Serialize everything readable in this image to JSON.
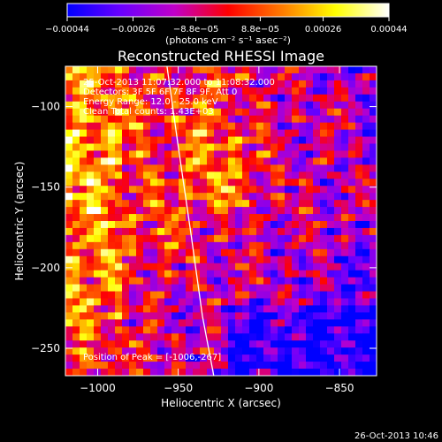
{
  "chart_data": {
    "type": "heatmap",
    "title": "Reconstructed RHESSI Image",
    "xlabel": "Heliocentric X (arcsec)",
    "ylabel": "Heliocentric Y (arcsec)",
    "xlim": [
      -1020,
      -827
    ],
    "ylim": [
      -267,
      -75
    ],
    "xticks": [
      -1000,
      -950,
      -900,
      -850
    ],
    "xtick_labels": [
      "−1000",
      "−950",
      "−900",
      "−850"
    ],
    "yticks": [
      -100,
      -150,
      -200,
      -250
    ],
    "ytick_labels": [
      "−100",
      "−150",
      "−200",
      "−250"
    ],
    "colorbar": {
      "range": [
        -0.00044,
        0.00044
      ],
      "ticks": [
        -0.00044,
        -0.00026,
        -8.8e-05,
        8.8e-05,
        0.00026,
        0.00044
      ],
      "tick_labels": [
        "−0.00044",
        "−0.00026",
        "−8.8e−05",
        "8.8e−05",
        "0.00026",
        "0.00044"
      ],
      "units": "(photons cm⁻² s⁻¹ asec⁻²)",
      "colors": [
        "#0000ff",
        "#6a00ff",
        "#c000c8",
        "#ff0000",
        "#ff7a00",
        "#ffff00",
        "#ffffff"
      ]
    },
    "annotations": [
      "25-Oct-2013 11:07:32.000 to 11:08:32.000",
      "Detectors: 3F 5F 6F 7F 8F 9F, Att 0",
      "Energy Range: 12.0 - 25.0 keV",
      "Clean     Total counts: 1.43E+03"
    ],
    "peak_label": "Position of Peak = [-1006,-267]",
    "limb_line": {
      "x": [
        -957,
        -950,
        -942,
        -935,
        -928
      ],
      "y": [
        -75,
        -125,
        -180,
        -230,
        -267
      ]
    },
    "timestamp": "26-Oct-2013 10:46"
  }
}
